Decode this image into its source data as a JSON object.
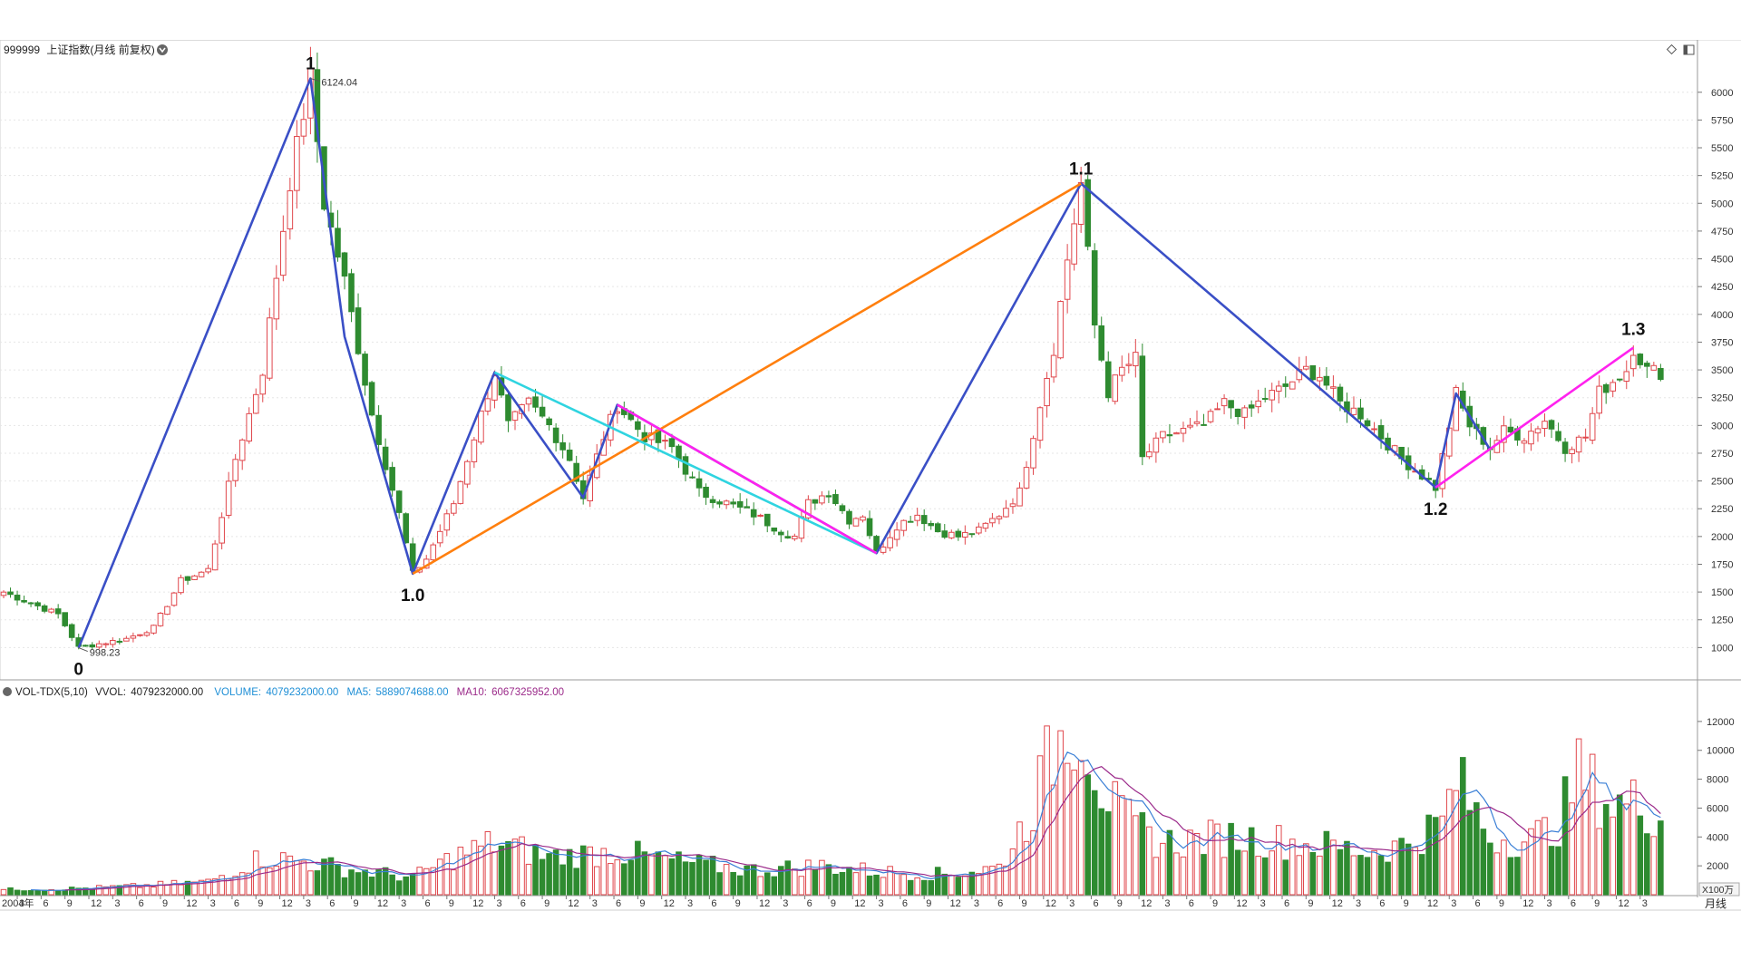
{
  "header": {
    "symbol_code": "999999",
    "symbol_title": "上证指数(月线 前复权)",
    "right_icons": [
      "diamond-icon",
      "panel-toggle-icon"
    ],
    "period_label": "月线"
  },
  "volume_header": {
    "indicator": "VOL-TDX(5,10)",
    "vvol_label": "VVOL:",
    "vvol_value": "4079232000.00",
    "volume_label": "VOLUME:",
    "volume_value": "4079232000.00",
    "ma5_label": "MA5:",
    "ma5_value": "5889074688.00",
    "ma10_label": "MA10:",
    "ma10_value": "6067325952.00",
    "unit_label": "X100万"
  },
  "colors": {
    "up": "#e0474c",
    "down": "#2e8b30",
    "wave_main": "#3a4fc6",
    "wave_orange": "#ff7f0e",
    "wave_cyan": "#2fd4e0",
    "wave_magenta": "#ff22ee",
    "ma5": "#3a7fd6",
    "ma10": "#9b2a8a",
    "grid": "#e6e6e6",
    "axis_text": "#333333"
  },
  "chart_data": {
    "type": "candlestick",
    "title": "999999 上证指数(月线 前复权)",
    "price_axis": {
      "min": 750,
      "max": 6300,
      "ticks": [
        1000,
        1250,
        1500,
        1750,
        2000,
        2250,
        2500,
        2750,
        3000,
        3250,
        3500,
        3750,
        4000,
        4250,
        4500,
        4750,
        5000,
        5250,
        5500,
        5750,
        6000
      ]
    },
    "volume_axis": {
      "min": 0,
      "max": 13500,
      "ticks": [
        2000,
        4000,
        6000,
        8000,
        10000,
        12000
      ],
      "unit": "X100万"
    },
    "x_axis": {
      "first_year_label": "2004年",
      "month_ticks": [
        "3",
        "6",
        "9",
        "12",
        "3",
        "6",
        "9",
        "12",
        "3",
        "6",
        "9",
        "12",
        "3",
        "6",
        "9",
        "12",
        "3",
        "6",
        "9",
        "12",
        "3",
        "6",
        "9",
        "12",
        "3",
        "6",
        "9",
        "12",
        "3",
        "6",
        "9",
        "12",
        "3",
        "6",
        "9",
        "12",
        "3",
        "6",
        "9",
        "12",
        "3",
        "6",
        "9",
        "12",
        "3",
        "6",
        "9",
        "12",
        "3",
        "6",
        "9",
        "12",
        "3",
        "6",
        "9",
        "12",
        "3",
        "6",
        "9",
        "12",
        "3",
        "6",
        "9",
        "12",
        "3",
        "6",
        "9",
        "12",
        "3"
      ]
    },
    "price_annotations": [
      {
        "label": "6124.04",
        "index": 45,
        "value": 6124.04
      },
      {
        "label": "998.23",
        "index": 11,
        "value": 998.23
      }
    ],
    "wave_labels": [
      {
        "label": "0",
        "index": 11,
        "value": 998.23,
        "pos": "below"
      },
      {
        "label": "1",
        "index": 45,
        "value": 6124.04,
        "pos": "above"
      },
      {
        "label": "1.0",
        "index": 60,
        "value": 1664.93,
        "pos": "below"
      },
      {
        "label": "1.1",
        "index": 158,
        "value": 5178.19,
        "pos": "above"
      },
      {
        "label": "1.2",
        "index": 210,
        "value": 2440.91,
        "pos": "below"
      },
      {
        "label": "1.3",
        "index": 239,
        "value": 3731.69,
        "pos": "above"
      }
    ],
    "wave_lines": [
      {
        "color": "wave_main",
        "points": [
          [
            11,
            998
          ],
          [
            45,
            6124
          ],
          [
            50,
            3800
          ],
          [
            60,
            1665
          ],
          [
            72,
            3478
          ],
          [
            85,
            2350
          ],
          [
            90,
            3186
          ],
          [
            128,
            1850
          ],
          [
            158,
            5178
          ],
          [
            210,
            2441
          ],
          [
            213,
            3288
          ],
          [
            218,
            2780
          ]
        ]
      },
      {
        "color": "wave_orange",
        "points": [
          [
            60,
            1665
          ],
          [
            158,
            5178
          ]
        ]
      },
      {
        "color": "wave_cyan",
        "points": [
          [
            72,
            3478
          ],
          [
            128,
            1850
          ]
        ]
      },
      {
        "color": "wave_magenta",
        "points": [
          [
            90,
            3186
          ],
          [
            128,
            1850
          ]
        ]
      },
      {
        "color": "wave_magenta",
        "points": [
          [
            210,
            2441
          ],
          [
            239,
            3700
          ]
        ]
      }
    ],
    "anchors": [
      [
        0,
        1500
      ],
      [
        8,
        1300
      ],
      [
        11,
        1000
      ],
      [
        18,
        1080
      ],
      [
        22,
        1180
      ],
      [
        26,
        1600
      ],
      [
        30,
        1700
      ],
      [
        34,
        2700
      ],
      [
        38,
        3500
      ],
      [
        42,
        5200
      ],
      [
        45,
        6124
      ],
      [
        47,
        5000
      ],
      [
        50,
        4300
      ],
      [
        54,
        3100
      ],
      [
        58,
        2200
      ],
      [
        60,
        1665
      ],
      [
        62,
        1800
      ],
      [
        66,
        2300
      ],
      [
        70,
        3100
      ],
      [
        72,
        3478
      ],
      [
        74,
        3000
      ],
      [
        77,
        3200
      ],
      [
        80,
        3000
      ],
      [
        83,
        2700
      ],
      [
        85,
        2350
      ],
      [
        88,
        2900
      ],
      [
        90,
        3186
      ],
      [
        94,
        2900
      ],
      [
        98,
        2800
      ],
      [
        102,
        2400
      ],
      [
        106,
        2300
      ],
      [
        110,
        2200
      ],
      [
        114,
        2050
      ],
      [
        116,
        2000
      ],
      [
        118,
        2300
      ],
      [
        121,
        2400
      ],
      [
        124,
        2150
      ],
      [
        126,
        2200
      ],
      [
        128,
        1850
      ],
      [
        131,
        2100
      ],
      [
        134,
        2200
      ],
      [
        137,
        2050
      ],
      [
        140,
        2000
      ],
      [
        143,
        2050
      ],
      [
        146,
        2200
      ],
      [
        149,
        2400
      ],
      [
        152,
        3200
      ],
      [
        154,
        3700
      ],
      [
        156,
        4500
      ],
      [
        158,
        5178
      ],
      [
        160,
        3900
      ],
      [
        162,
        3300
      ],
      [
        164,
        3500
      ],
      [
        166,
        3600
      ],
      [
        167,
        2700
      ],
      [
        170,
        2900
      ],
      [
        173,
        2950
      ],
      [
        176,
        3000
      ],
      [
        179,
        3200
      ],
      [
        182,
        3100
      ],
      [
        185,
        3250
      ],
      [
        188,
        3350
      ],
      [
        191,
        3500
      ],
      [
        193,
        3450
      ],
      [
        196,
        3200
      ],
      [
        199,
        3100
      ],
      [
        202,
        2900
      ],
      [
        205,
        2700
      ],
      [
        208,
        2550
      ],
      [
        210,
        2441
      ],
      [
        212,
        3000
      ],
      [
        213,
        3288
      ],
      [
        215,
        3000
      ],
      [
        218,
        2800
      ],
      [
        220,
        2950
      ],
      [
        223,
        2900
      ],
      [
        226,
        3050
      ],
      [
        229,
        2800
      ],
      [
        232,
        2900
      ],
      [
        234,
        3300
      ],
      [
        236,
        3400
      ],
      [
        238,
        3500
      ],
      [
        239,
        3700
      ],
      [
        241,
        3500
      ],
      [
        243,
        3480
      ]
    ],
    "volume_anchors": [
      [
        0,
        350
      ],
      [
        10,
        420
      ],
      [
        20,
        600
      ],
      [
        30,
        900
      ],
      [
        38,
        2600
      ],
      [
        44,
        2300
      ],
      [
        50,
        1800
      ],
      [
        60,
        1200
      ],
      [
        66,
        2600
      ],
      [
        72,
        3600
      ],
      [
        80,
        2600
      ],
      [
        90,
        3000
      ],
      [
        100,
        2200
      ],
      [
        110,
        1700
      ],
      [
        120,
        2000
      ],
      [
        128,
        1600
      ],
      [
        138,
        1400
      ],
      [
        146,
        1900
      ],
      [
        150,
        5200
      ],
      [
        154,
        10000
      ],
      [
        157,
        12500
      ],
      [
        159,
        11000
      ],
      [
        161,
        7600
      ],
      [
        164,
        5200
      ],
      [
        170,
        3600
      ],
      [
        180,
        4000
      ],
      [
        190,
        3600
      ],
      [
        200,
        3000
      ],
      [
        205,
        3400
      ],
      [
        211,
        5000
      ],
      [
        213,
        8000
      ],
      [
        218,
        4000
      ],
      [
        224,
        3800
      ],
      [
        228,
        5000
      ],
      [
        231,
        8300
      ],
      [
        236,
        6200
      ],
      [
        240,
        6300
      ],
      [
        243,
        5600
      ]
    ]
  }
}
